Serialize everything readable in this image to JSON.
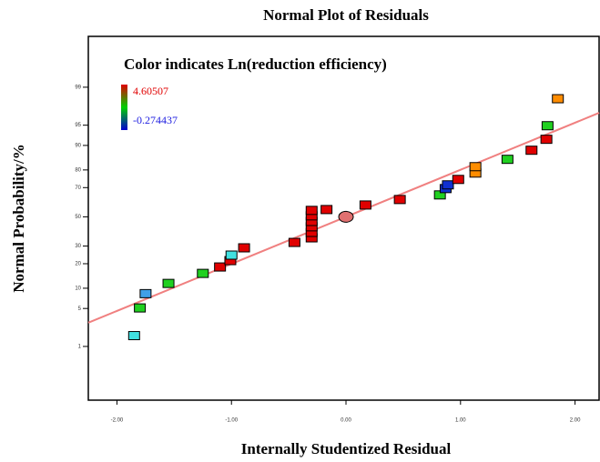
{
  "chart_data": {
    "type": "scatter",
    "title": "Normal Plot of Residuals",
    "x_label": "Internally Studentized Residual",
    "y_label": "Normal Probability/%",
    "y_scale": "probit",
    "xlim": [
      -2.25,
      2.21
    ],
    "ylim": [
      0.05,
      99.94
    ],
    "xticks": [
      {
        "value": -2,
        "label": "-2.00"
      },
      {
        "value": -1,
        "label": "-1.00"
      },
      {
        "value": 0,
        "label": "0.00"
      },
      {
        "value": 1,
        "label": "1.00"
      },
      {
        "value": 2,
        "label": "2.00"
      }
    ],
    "yticks": [
      1,
      5,
      10,
      20,
      30,
      50,
      70,
      80,
      90,
      95,
      99
    ],
    "colorbar": {
      "title": "Color indicates Ln(reduction efficiency)",
      "max": 4.60507,
      "min": -0.274437,
      "colors": [
        "#e00000",
        "#00d000",
        "#0000d0"
      ]
    },
    "fit_line": {
      "x": [
        -2.25,
        2.21
      ],
      "y": [
        2.87,
        96.9
      ],
      "color": "#f08080"
    },
    "center_point": {
      "x": 0,
      "y": 50,
      "color": "#e07070"
    },
    "series": [
      {
        "x": [
          -1.85,
          -1.75,
          -1.8,
          -1.55,
          -1.25,
          -1.1,
          -1.01,
          -1.0,
          -0.89,
          -0.45,
          -0.3,
          -0.3,
          -0.3,
          -0.3,
          -0.3,
          -0.3,
          -0.17,
          0.17,
          0.47,
          0.82,
          0.87,
          0.89,
          0.98,
          1.13,
          1.13,
          1.41,
          1.62,
          1.75,
          1.76,
          1.85
        ],
        "values": [
          1.65,
          8.4,
          5.1,
          11.6,
          15.5,
          18.4,
          21.6,
          24.6,
          28.9,
          32.3,
          35.3,
          39.0,
          42.9,
          46.7,
          50.7,
          54.6,
          55.2,
          58.4,
          62.2,
          65.3,
          69.4,
          71.7,
          74.9,
          78.4,
          81.6,
          84.9,
          88.4,
          91.8,
          94.9,
          98.3
        ],
        "colors": [
          "#40e0e0",
          "#40a0e8",
          "#20d020",
          "#20d020",
          "#20d020",
          "#e00000",
          "#e00000",
          "#40e0e0",
          "#e00000",
          "#e00000",
          "#e00000",
          "#e00000",
          "#e00000",
          "#e00000",
          "#e00000",
          "#e00000",
          "#e00000",
          "#e00000",
          "#e00000",
          "#20d020",
          "#1030d0",
          "#1030d0",
          "#e00000",
          "#ff8c00",
          "#ff8c00",
          "#20d020",
          "#e00000",
          "#e00000",
          "#20d020",
          "#ff8c00"
        ]
      }
    ]
  }
}
